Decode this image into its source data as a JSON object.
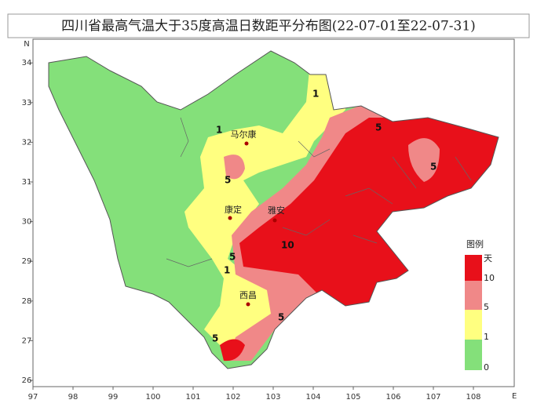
{
  "title": "四川省最高气温大于35度高温日数距平分布图(22-07-01至22-07-31)",
  "map": {
    "x_axis": {
      "label": "E",
      "ticks": [
        97,
        98,
        99,
        100,
        101,
        102,
        103,
        104,
        105,
        106,
        107,
        108
      ]
    },
    "y_axis": {
      "label": "N",
      "ticks": [
        26,
        27,
        28,
        29,
        30,
        31,
        32,
        33,
        34
      ]
    },
    "cities": [
      "马尔康",
      "康定",
      "雅安",
      "西昌"
    ],
    "contour_labels": [
      "1",
      "1",
      "5",
      "5",
      "1",
      "10",
      "5",
      "5",
      "5",
      "5"
    ]
  },
  "legend": {
    "title": "图例",
    "unit": "天",
    "entries": [
      {
        "label": 10,
        "color": "#e8101a"
      },
      {
        "label": 5,
        "color": "#f08888"
      },
      {
        "label": 1,
        "color": "#ffff80"
      },
      {
        "label": 0,
        "color": "#84e07a"
      }
    ]
  }
}
